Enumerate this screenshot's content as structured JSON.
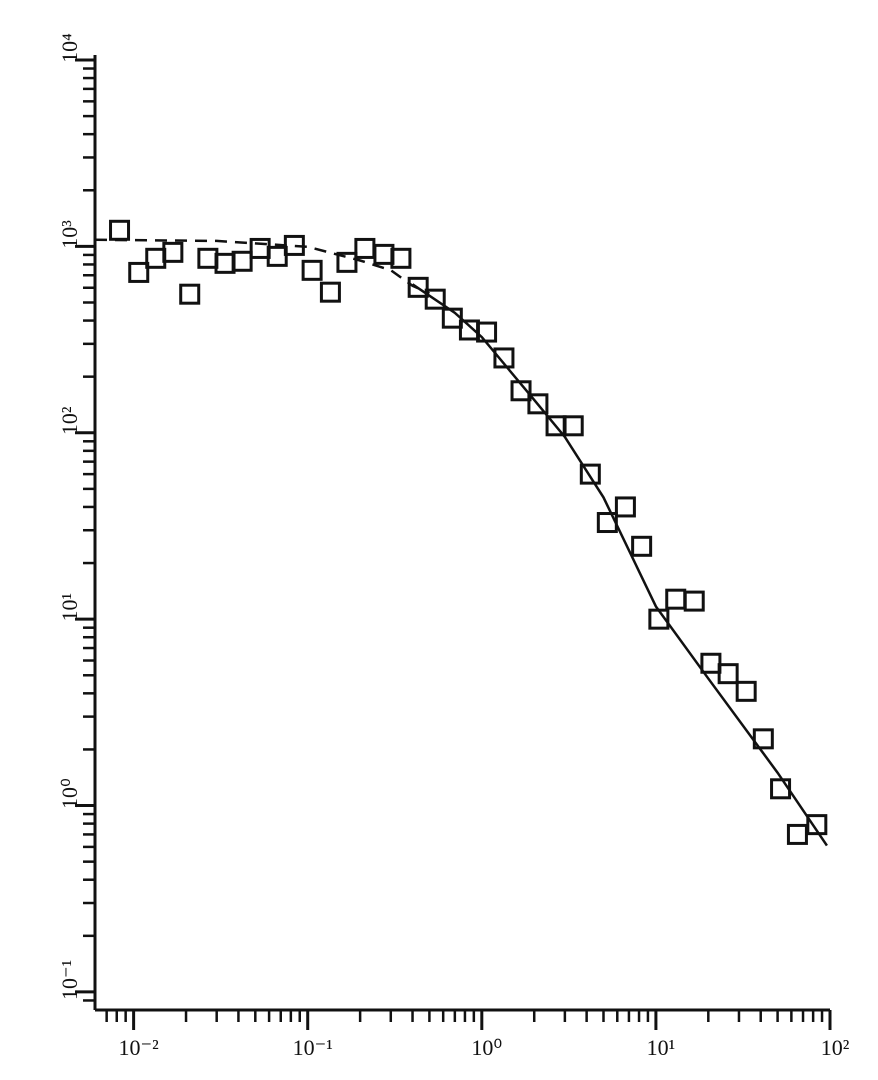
{
  "chart_data": {
    "type": "scatter",
    "xscale": "log",
    "yscale": "log",
    "minor_ticks": true,
    "xlim": [
      0.006,
      100
    ],
    "ylim": [
      0.08,
      10000
    ],
    "xticks": [
      {
        "value": 0.01,
        "label": "10⁻²"
      },
      {
        "value": 0.1,
        "label": "10⁻¹"
      },
      {
        "value": 1,
        "label": "10⁰"
      },
      {
        "value": 10,
        "label": "10¹"
      },
      {
        "value": 100,
        "label": "10²"
      }
    ],
    "yticks": [
      {
        "value": 0.1,
        "label": "10⁻¹"
      },
      {
        "value": 1,
        "label": "10⁰"
      },
      {
        "value": 10,
        "label": "10¹"
      },
      {
        "value": 100,
        "label": "10²"
      },
      {
        "value": 1000,
        "label": "10³"
      },
      {
        "value": 10000,
        "label": "10⁴"
      }
    ],
    "series": [
      {
        "style": "marker",
        "color": "#111",
        "x": [
          0.0083,
          0.0107,
          0.0134,
          0.0168,
          0.021,
          0.0267,
          0.0335,
          0.042,
          0.0533,
          0.0668,
          0.0838,
          0.106,
          0.135,
          0.168,
          0.213,
          0.274,
          0.343,
          0.431,
          0.54,
          0.677,
          0.849,
          1.065,
          1.34,
          1.68,
          2.1,
          2.67,
          3.35,
          4.2,
          5.26,
          6.68,
          8.28,
          10.4,
          13,
          16.6,
          20.7,
          26,
          33,
          41.4,
          52,
          65,
          84
        ],
        "values": [
          1220,
          725,
          863,
          929,
          554,
          863,
          811,
          832,
          975,
          884,
          1012,
          744,
          568,
          821,
          975,
          906,
          863,
          603,
          521,
          412,
          356,
          347,
          252,
          168,
          143,
          109,
          109,
          60,
          33,
          40,
          24.6,
          10,
          12.8,
          12.5,
          5.8,
          5.1,
          4.1,
          2.28,
          1.23,
          0.7,
          0.79
        ]
      },
      {
        "style": "solid",
        "color": "#111",
        "x": [
          0.4,
          0.7,
          1,
          2,
          3,
          5,
          10,
          20,
          50,
          96
        ],
        "values": [
          626,
          440,
          326,
          150,
          95,
          45,
          11.7,
          4.8,
          1.5,
          0.61
        ]
      },
      {
        "style": "dashed",
        "color": "#111",
        "x": [
          0.006,
          0.03,
          0.1,
          0.2,
          0.3,
          0.4,
          0.5
        ],
        "values": [
          1085,
          1070,
          995,
          840,
          745,
          615,
          560
        ]
      }
    ]
  }
}
